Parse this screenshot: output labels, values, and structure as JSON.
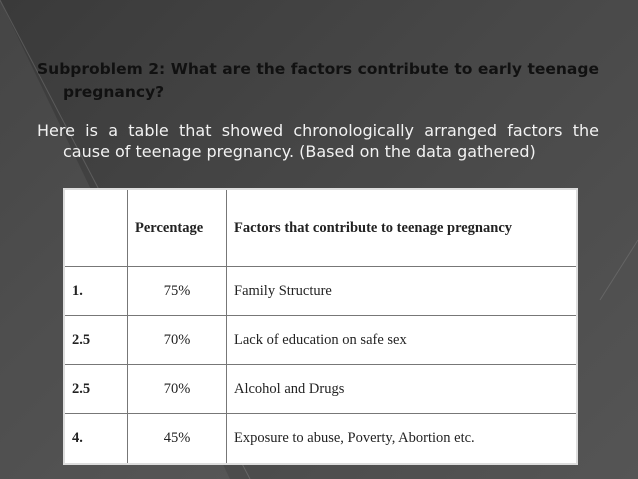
{
  "slide": {
    "title": "Subproblem 2: What are the factors contribute to early teenage pregnancy?",
    "body": "Here is a table that showed chronologically arranged factors the cause of teenage pregnancy. (Based on the data gathered)"
  },
  "table": {
    "headers": [
      "",
      "Percentage",
      "Factors that contribute to teenage pregnancy"
    ],
    "rows": [
      {
        "rank": "1.",
        "percentage": "75%",
        "factor": "Family Structure"
      },
      {
        "rank": "2.5",
        "percentage": "70%",
        "factor": "Lack of education on safe sex"
      },
      {
        "rank": "2.5",
        "percentage": "70%",
        "factor": "Alcohol and Drugs"
      },
      {
        "rank": "4.",
        "percentage": "45%",
        "factor": "Exposure to abuse, Poverty, Abortion etc."
      }
    ]
  }
}
